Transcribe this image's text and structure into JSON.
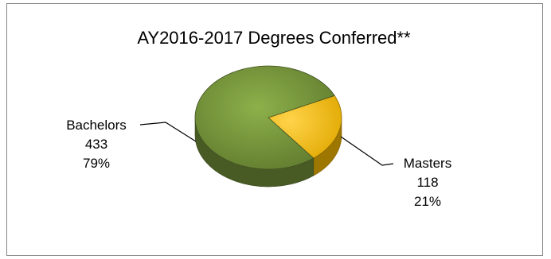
{
  "chart_data": {
    "type": "pie",
    "title": "AY2016-2017 Degrees Conferred**",
    "three_d": true,
    "legend": "none",
    "slices": [
      {
        "label": "Bachelors",
        "value": 433,
        "percent": "79%",
        "color": "#76923c"
      },
      {
        "label": "Masters",
        "value": 118,
        "percent": "21%",
        "color": "#ffc000"
      }
    ]
  }
}
